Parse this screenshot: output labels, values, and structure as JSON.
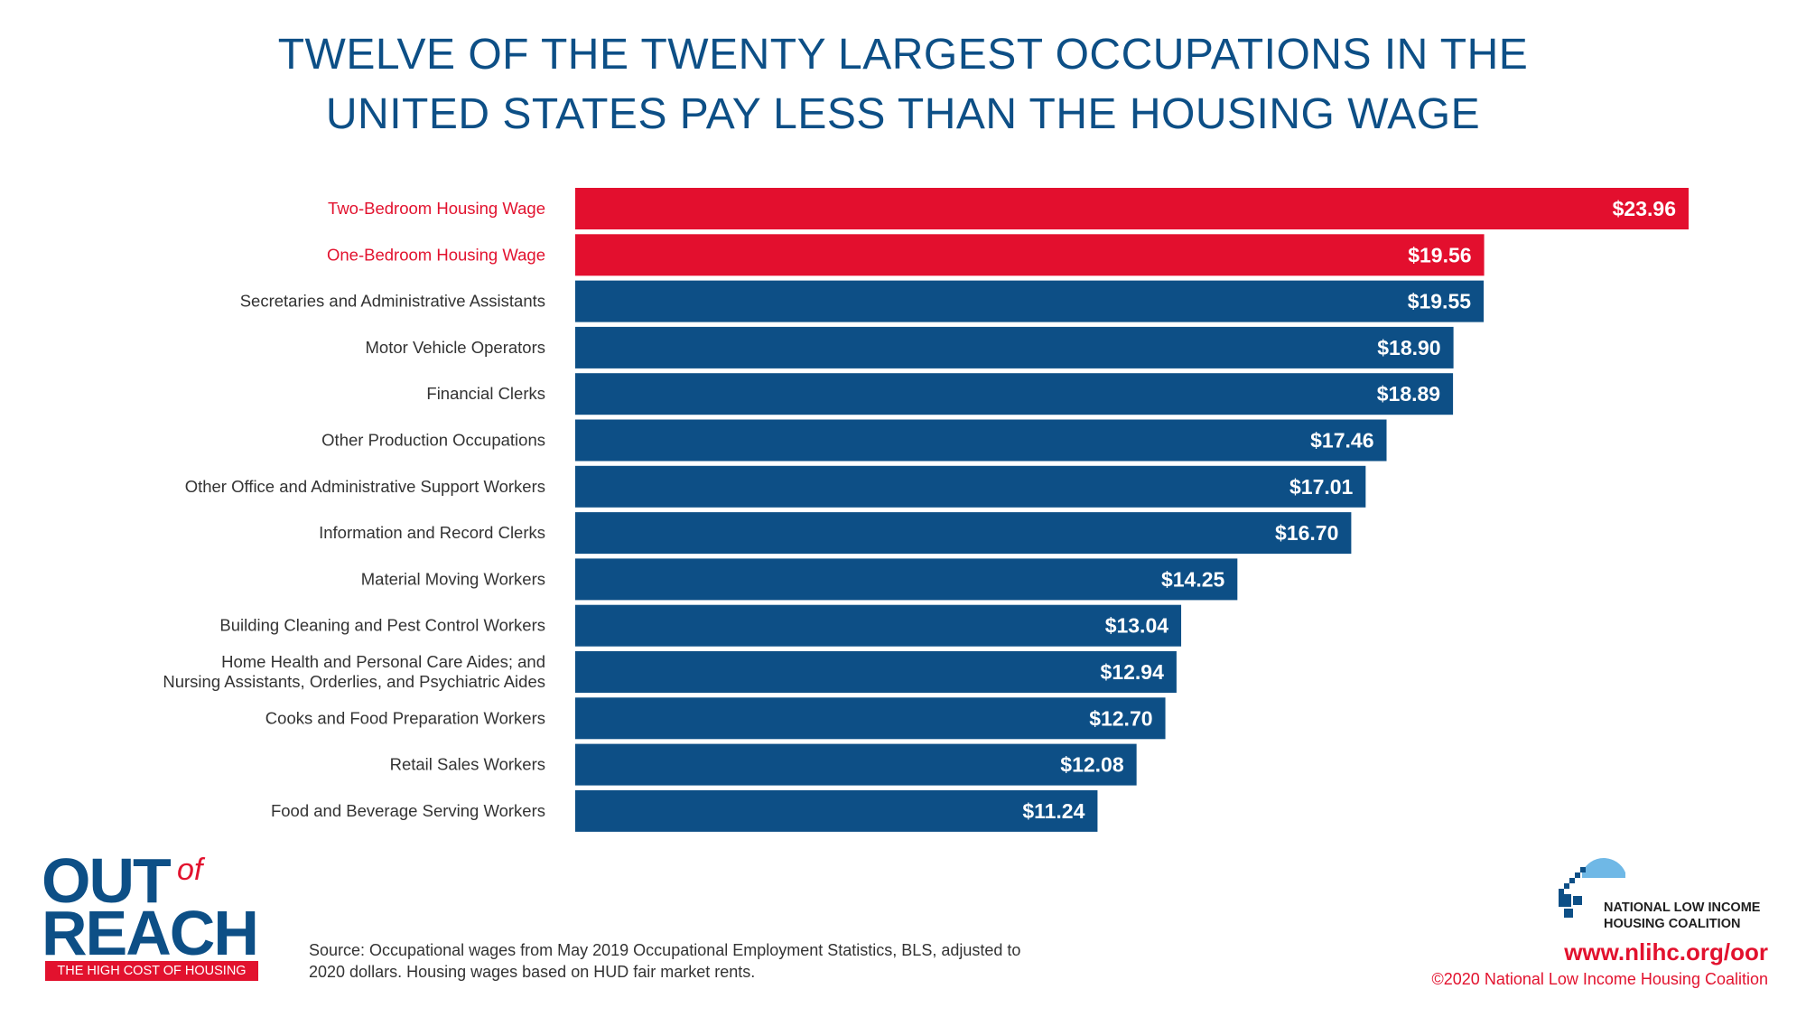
{
  "title_lines": [
    "TWELVE OF THE TWENTY LARGEST OCCUPATIONS IN THE",
    "UNITED STATES PAY LESS THAN THE HOUSING WAGE"
  ],
  "chart_data": {
    "type": "bar",
    "orientation": "horizontal",
    "title": "TWELVE OF THE TWENTY LARGEST OCCUPATIONS IN THE UNITED STATES PAY LESS THAN THE HOUSING WAGE",
    "xlim": [
      0,
      23.96
    ],
    "grid": false,
    "categories": [
      [
        "Two-Bedroom Housing Wage"
      ],
      [
        "One-Bedroom Housing Wage"
      ],
      [
        "Secretaries and Administrative Assistants"
      ],
      [
        "Motor Vehicle Operators"
      ],
      [
        "Financial Clerks"
      ],
      [
        "Other Production Occupations"
      ],
      [
        "Other Office and Administrative Support Workers"
      ],
      [
        "Information and Record Clerks"
      ],
      [
        "Material Moving Workers"
      ],
      [
        "Building Cleaning and Pest Control Workers"
      ],
      [
        "Home Health and Personal Care Aides; and",
        "Nursing Assistants, Orderlies, and Psychiatric Aides"
      ],
      [
        "Cooks and Food Preparation Workers"
      ],
      [
        "Retail Sales Workers"
      ],
      [
        "Food and Beverage Serving Workers"
      ]
    ],
    "values": [
      23.96,
      19.56,
      19.55,
      18.9,
      18.89,
      17.46,
      17.01,
      16.7,
      14.25,
      13.04,
      12.94,
      12.7,
      12.08,
      11.24
    ],
    "value_labels": [
      "$23.96",
      "$19.56",
      "$19.55",
      "$18.90",
      "$18.89",
      "$17.46",
      "$17.01",
      "$16.70",
      "$14.25",
      "$13.04",
      "$12.94",
      "$12.70",
      "$12.08",
      "$11.24"
    ],
    "highlight_count": 2,
    "colors": {
      "highlight_bar": "#e30f2e",
      "highlight_text": "#e2122e",
      "bar": "#0d4f86",
      "label_text": "#333333"
    }
  },
  "logo": {
    "out": "OUT",
    "of": "of",
    "reach": "REACH",
    "tagline": "THE HIGH COST OF HOUSING"
  },
  "source_lines": [
    "Source: Occupational wages from May 2019 Occupational Employment Statistics, BLS, adjusted to",
    "2020 dollars. Housing wages based on HUD fair market rents."
  ],
  "nlihc": {
    "name_lines": [
      "NATIONAL LOW INCOME",
      "HOUSING COALITION"
    ],
    "url": "www.nlihc.org/oor",
    "copyright": "©2020 National Low Income Housing Coalition"
  }
}
